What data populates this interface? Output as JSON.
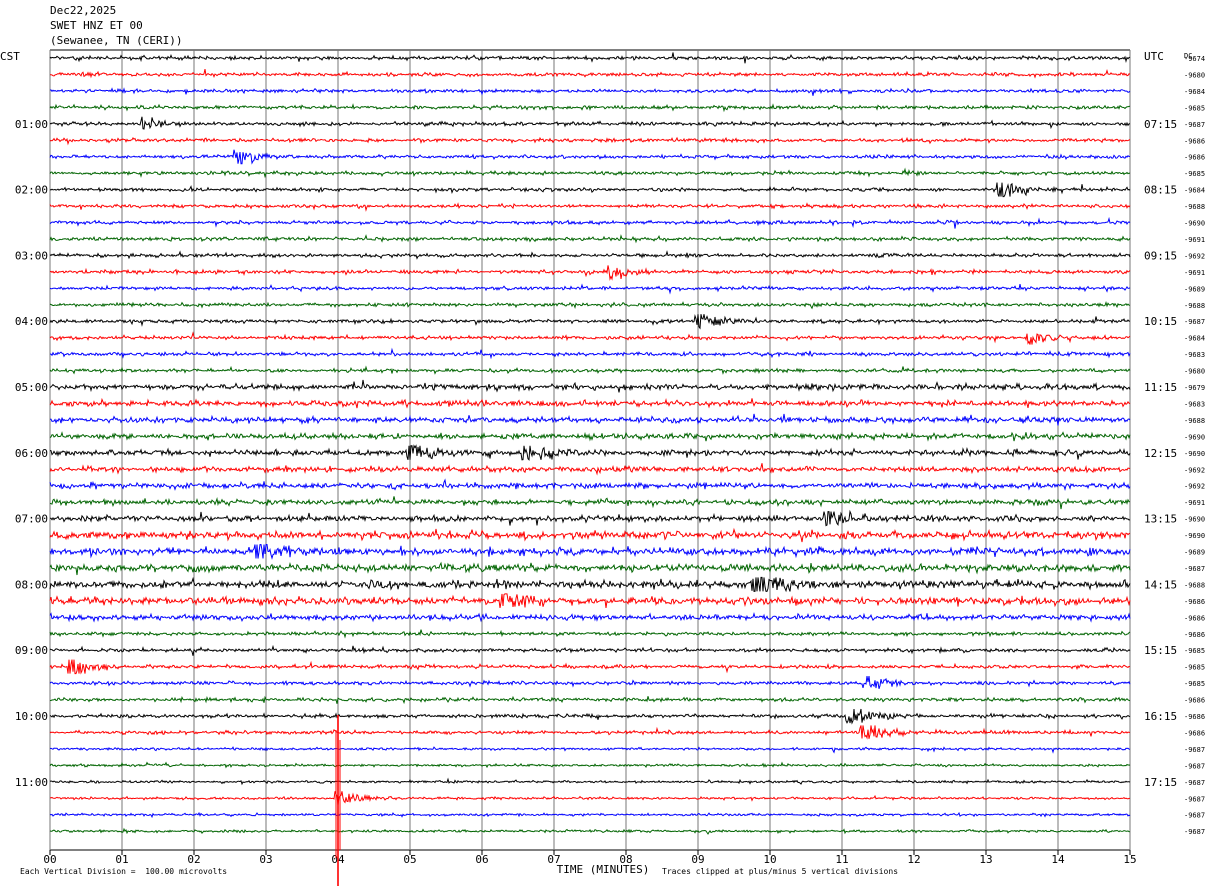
{
  "header": {
    "date": "Dec22,2025",
    "channel": "SWET HNZ ET 00",
    "station": "(Sewanee, TN (CERI))"
  },
  "axes": {
    "left_tz": "CST",
    "right_tz": "UTC",
    "dc_label": "DC",
    "xlabel": "TIME (MINUTES)"
  },
  "footer": {
    "scale_note": "Each Vertical Division =  100.00 microvolts",
    "clip_note": "Traces clipped at plus/minus 5 vertical divisions"
  },
  "chart_data": {
    "type": "line",
    "title": "SWET HNZ ET 00",
    "xlabel": "TIME (MINUTES)",
    "xlim": [
      0,
      15
    ],
    "x_ticks": [
      "00",
      "01",
      "02",
      "03",
      "04",
      "05",
      "06",
      "07",
      "08",
      "09",
      "10",
      "11",
      "12",
      "13",
      "14",
      "15"
    ],
    "trace_colors": [
      "#000000",
      "#ff0000",
      "#0000ff",
      "#006400"
    ],
    "left_time_labels": [
      "01:00",
      "02:00",
      "03:00",
      "04:00",
      "05:00",
      "06:00",
      "07:00",
      "08:00",
      "09:00",
      "10:00",
      "11:00"
    ],
    "right_time_labels": [
      "07:15",
      "08:15",
      "09:15",
      "10:15",
      "11:15",
      "12:15",
      "13:15",
      "14:15",
      "15:15",
      "16:15",
      "17:15"
    ],
    "dc_offsets": [
      "-9674",
      "-9680",
      "-9684",
      "-9685",
      "-9687",
      "-9686",
      "-9686",
      "-9685",
      "-9684",
      "-9688",
      "-9690",
      "-9691",
      "-9692",
      "-9691",
      "-9689",
      "-9688",
      "-9687",
      "-9684",
      "-9683",
      "-9680",
      "-9679",
      "-9683",
      "-9688",
      "-9690",
      "-9690",
      "-9692",
      "-9692",
      "-9691",
      "-9690",
      "-9690",
      "-9689",
      "-9687",
      "-9688",
      "-9686",
      "-9686",
      "-9686",
      "-9685",
      "-9685",
      "-9685",
      "-9686",
      "-9686",
      "-9686",
      "-9687",
      "-9687",
      "-9687",
      "-9687",
      "-9687",
      "-9687"
    ],
    "events": [
      {
        "trace": 4,
        "minute": 1.3,
        "amp": 4
      },
      {
        "trace": 6,
        "minute": 2.6,
        "amp": 7
      },
      {
        "trace": 8,
        "minute": 13.2,
        "amp": 7
      },
      {
        "trace": 13,
        "minute": 7.8,
        "amp": 6
      },
      {
        "trace": 16,
        "minute": 9.0,
        "amp": 7
      },
      {
        "trace": 17,
        "minute": 13.6,
        "amp": 6
      },
      {
        "trace": 24,
        "minute": 5.0,
        "amp": 9
      },
      {
        "trace": 24,
        "minute": 6.6,
        "amp": 8
      },
      {
        "trace": 28,
        "minute": 10.8,
        "amp": 8
      },
      {
        "trace": 30,
        "minute": 2.9,
        "amp": 9
      },
      {
        "trace": 32,
        "minute": 9.8,
        "amp": 12
      },
      {
        "trace": 33,
        "minute": 6.3,
        "amp": 8
      },
      {
        "trace": 37,
        "minute": 0.3,
        "amp": 8
      },
      {
        "trace": 38,
        "minute": 11.3,
        "amp": 8
      },
      {
        "trace": 40,
        "minute": 11.1,
        "amp": 9
      },
      {
        "trace": 41,
        "minute": 11.3,
        "amp": 8
      },
      {
        "trace": 45,
        "minute": 4.0,
        "amp": 9
      }
    ],
    "main_event": {
      "trace": 45,
      "minute": 4.0
    },
    "clip_divisions": 5,
    "vertical_division_microvolts": 100.0
  }
}
